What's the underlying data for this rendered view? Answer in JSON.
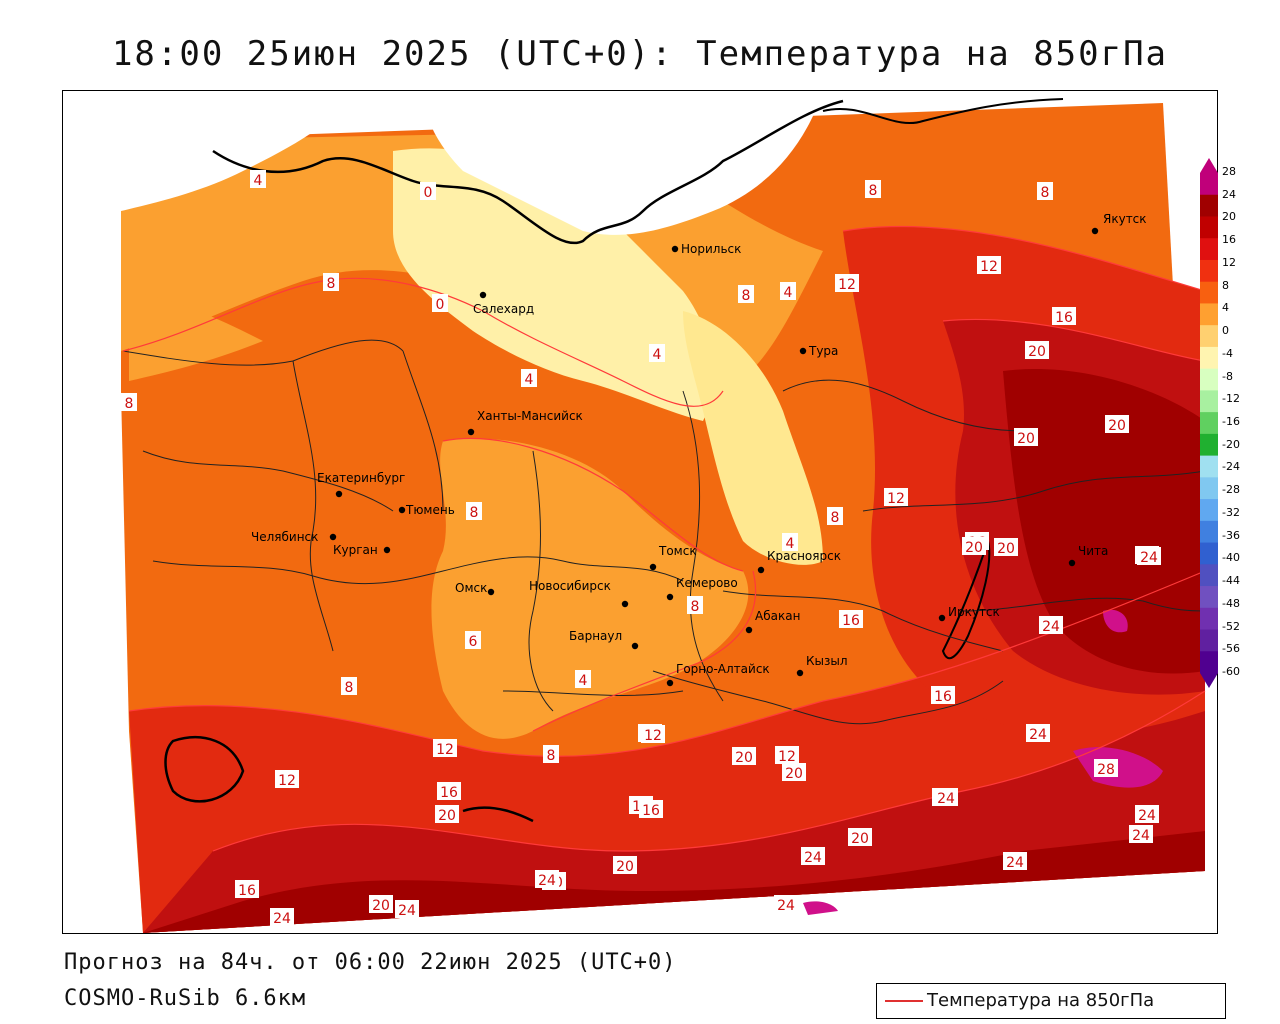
{
  "title": "18:00 25июн 2025 (UTC+0): Температура на 850гПа",
  "footer": {
    "forecast": "Прогноз на 84ч. от 06:00 22июн 2025 (UTC+0)",
    "model": "COSMO-RuSib 6.6км"
  },
  "legend": {
    "label": "Температура на 850гПа",
    "line_color": "#e03030"
  },
  "colorbar": {
    "ticks": [
      "28",
      "24",
      "20",
      "16",
      "12",
      "8",
      "4",
      "0",
      "-4",
      "-8",
      "-12",
      "-16",
      "-20",
      "-24",
      "-28",
      "-32",
      "-36",
      "-40",
      "-44",
      "-48",
      "-52",
      "-56",
      "-60"
    ],
    "colors": [
      "#c0007a",
      "#a00000",
      "#c00000",
      "#e01010",
      "#f03010",
      "#f86010",
      "#ffa030",
      "#ffd070",
      "#fff4b0",
      "#d8ffc0",
      "#a8f0a0",
      "#60d060",
      "#20b030",
      "#a0e0f0",
      "#80c8f0",
      "#60a8f0",
      "#4080e0",
      "#3060d0",
      "#5050c0",
      "#7050c0",
      "#7030b0",
      "#6020a0",
      "#500090"
    ]
  },
  "cities": [
    {
      "name": "Норильск"
    },
    {
      "name": "Якутск"
    },
    {
      "name": "Салехард"
    },
    {
      "name": "Тура"
    },
    {
      "name": "Ханты-Мансийск"
    },
    {
      "name": "Екатеринбург"
    },
    {
      "name": "Тюмень"
    },
    {
      "name": "Челябинск"
    },
    {
      "name": "Курган"
    },
    {
      "name": "Омск"
    },
    {
      "name": "Новосибирск"
    },
    {
      "name": "Томск"
    },
    {
      "name": "Кемерово"
    },
    {
      "name": "Красноярск"
    },
    {
      "name": "Абакан"
    },
    {
      "name": "Барнаул"
    },
    {
      "name": "Горно-Алтайск"
    },
    {
      "name": "Кызыл"
    },
    {
      "name": "Иркутск"
    },
    {
      "name": "Чита"
    }
  ],
  "contour_labels": [
    "4",
    "0",
    "8",
    "0",
    "4",
    "4",
    "8",
    "4",
    "8",
    "12",
    "8",
    "12",
    "16",
    "20",
    "8",
    "20",
    "20",
    "12",
    "8",
    "16",
    "20",
    "24",
    "8",
    "4",
    "6",
    "8",
    "4",
    "8",
    "12",
    "12",
    "12",
    "16",
    "24",
    "12",
    "8",
    "16",
    "20",
    "12",
    "20",
    "24",
    "28",
    "16",
    "20",
    "20",
    "16",
    "20",
    "24",
    "24",
    "20",
    "24",
    "16",
    "24",
    "20",
    "24",
    "24",
    "20",
    "24",
    "24",
    "16",
    "24",
    "20",
    "24"
  ]
}
